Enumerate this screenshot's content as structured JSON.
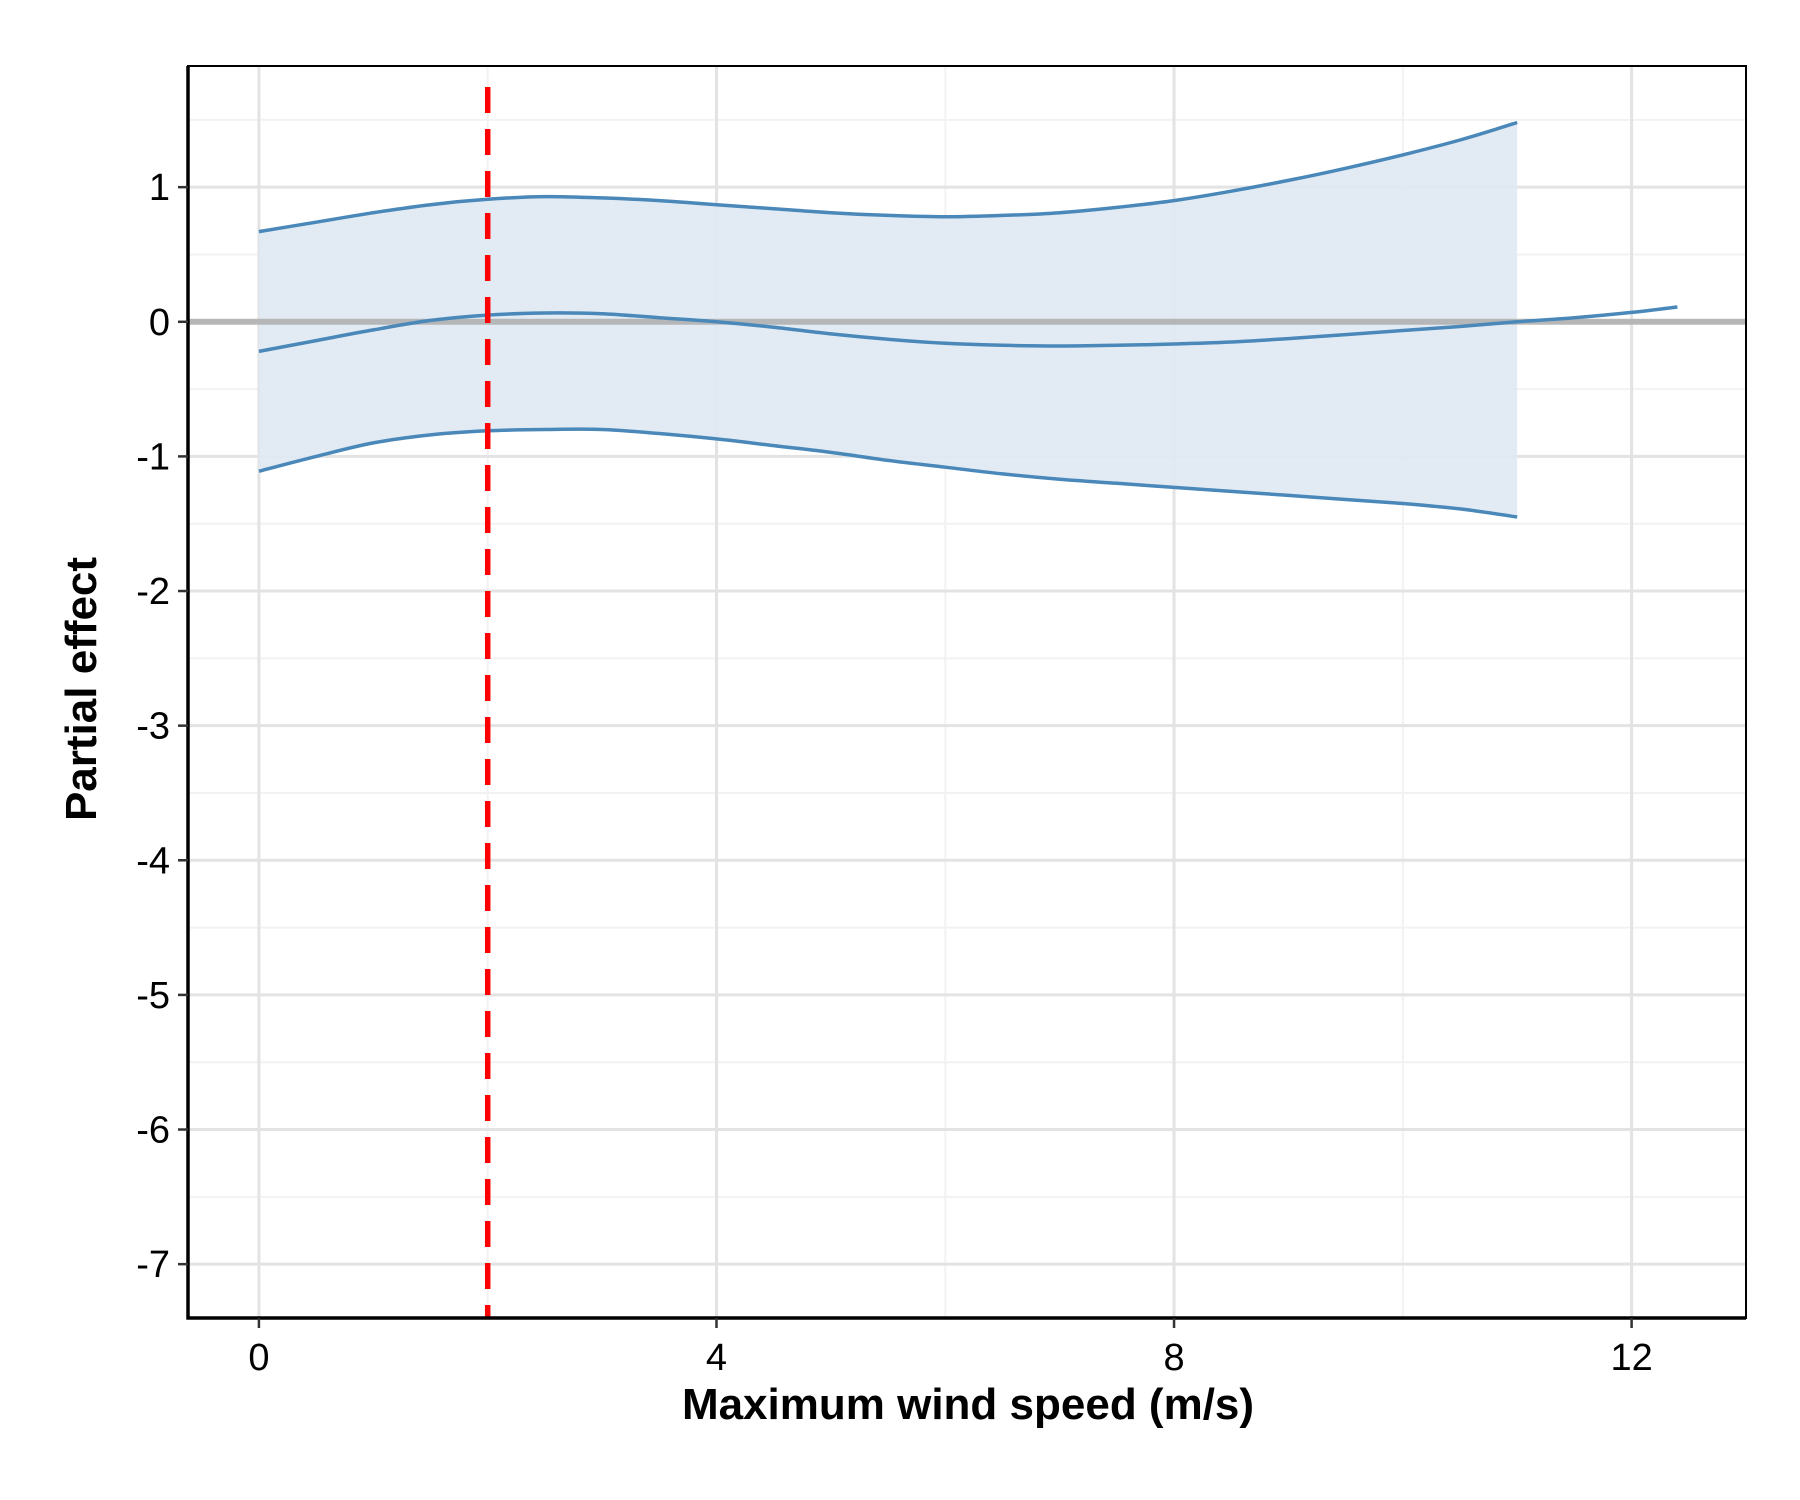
{
  "chart_data": {
    "type": "line",
    "title": "",
    "xlabel": "Maximum wind speed (m/s)",
    "ylabel": "Partial effect",
    "xlim": [
      -0.62,
      13
    ],
    "ylim": [
      -7.4,
      1.9
    ],
    "x_ticks": [
      0,
      4,
      8,
      12
    ],
    "x_tick_labels": [
      "0",
      "4",
      "8",
      "12"
    ],
    "y_ticks": [
      1,
      0,
      -1,
      -2,
      -3,
      -4,
      -5,
      -6,
      -7
    ],
    "y_tick_labels": [
      "1",
      "0",
      "-1",
      "-2",
      "-3",
      "-4",
      "-5",
      "-6",
      "-7"
    ],
    "grid": true,
    "legend": "none",
    "reference_lines": {
      "horizontal_zero": {
        "y": 0,
        "color": "#b0b0b0"
      },
      "vertical_threshold": {
        "x": 2,
        "color": "#ff0000",
        "style": "dashed"
      }
    },
    "series": [
      {
        "role": "fit",
        "color": "#4a88b9",
        "x": [
          0,
          0.5,
          1,
          1.5,
          2,
          2.5,
          3,
          3.5,
          4,
          4.5,
          5,
          5.5,
          6,
          6.5,
          7,
          7.5,
          8,
          8.5,
          9,
          9.5,
          10,
          10.5,
          11,
          11.5,
          12,
          12.4
        ],
        "y": [
          -0.22,
          -0.14,
          -0.06,
          0.01,
          0.05,
          0.065,
          0.06,
          0.03,
          0.0,
          -0.04,
          -0.09,
          -0.13,
          -0.16,
          -0.175,
          -0.18,
          -0.175,
          -0.165,
          -0.15,
          -0.125,
          -0.095,
          -0.065,
          -0.035,
          0.0,
          0.03,
          0.07,
          0.11
        ]
      },
      {
        "role": "upper_ci",
        "color": "#4a88b9",
        "x": [
          0,
          0.5,
          1,
          1.5,
          2,
          2.5,
          3,
          3.5,
          4,
          4.5,
          5,
          5.5,
          6,
          6.5,
          7,
          7.5,
          8,
          8.5,
          9,
          9.5,
          10,
          10.5,
          11
        ],
        "y": [
          0.67,
          0.74,
          0.81,
          0.87,
          0.91,
          0.93,
          0.92,
          0.9,
          0.87,
          0.84,
          0.81,
          0.79,
          0.78,
          0.79,
          0.81,
          0.85,
          0.9,
          0.97,
          1.05,
          1.14,
          1.24,
          1.35,
          1.48
        ]
      },
      {
        "role": "lower_ci",
        "color": "#4a88b9",
        "x": [
          0,
          0.5,
          1,
          1.5,
          2,
          2.5,
          3,
          3.5,
          4,
          4.5,
          5,
          5.5,
          6,
          6.5,
          7,
          7.5,
          8,
          8.5,
          9,
          9.5,
          10,
          10.5,
          11
        ],
        "y": [
          -1.11,
          -1.0,
          -0.9,
          -0.84,
          -0.81,
          -0.8,
          -0.8,
          -0.83,
          -0.87,
          -0.92,
          -0.97,
          -1.03,
          -1.08,
          -1.13,
          -1.17,
          -1.2,
          -1.23,
          -1.26,
          -1.29,
          -1.32,
          -1.35,
          -1.39,
          -1.45
        ]
      }
    ],
    "ribbon_color": "#dfe9f2"
  }
}
